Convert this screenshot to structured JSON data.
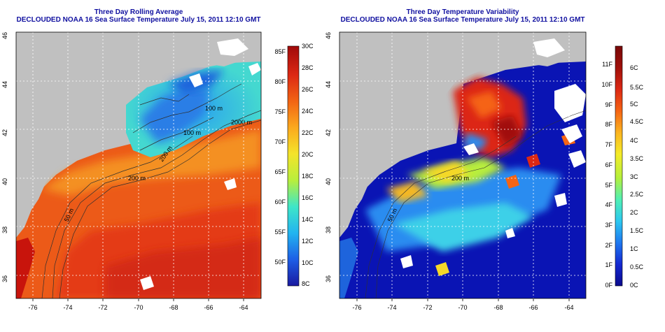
{
  "panels": [
    {
      "title": "Three Day Rolling Average",
      "subtitle": "DECLOUDED NOAA 16 Sea Surface Temperature July 15, 2011 12:10 GMT",
      "lon_ticks": [
        "-76",
        "-74",
        "-72",
        "-70",
        "-68",
        "-66",
        "-64"
      ],
      "lat_ticks": [
        "36",
        "38",
        "40",
        "42",
        "44",
        "46"
      ],
      "contour_labels": [
        "100 m",
        "2000 m",
        "100 m",
        "200 m",
        "200 m",
        "50 m"
      ],
      "colorbar": {
        "celsius": [
          "30C",
          "28C",
          "26C",
          "24C",
          "22C",
          "20C",
          "18C",
          "16C",
          "14C",
          "12C",
          "10C",
          "8C"
        ],
        "fahrenheit": [
          "85F",
          "80F",
          "75F",
          "70F",
          "65F",
          "60F",
          "55F",
          "50F"
        ],
        "colors": [
          "#1a1aa0",
          "#1e5ee6",
          "#22b4f0",
          "#3ee6c8",
          "#b8ee3c",
          "#f4e42a",
          "#fba91e",
          "#f26414",
          "#dc2814",
          "#a00a0a"
        ]
      }
    },
    {
      "title": "Three Day Temperature Variability",
      "subtitle": "DECLOUDED NOAA 16 Sea Surface Temperature July 15, 2011 12:10 GMT",
      "lon_ticks": [
        "-76",
        "-74",
        "-72",
        "-70",
        "-68",
        "-66",
        "-64"
      ],
      "lat_ticks": [
        "36",
        "38",
        "40",
        "42",
        "44",
        "46"
      ],
      "contour_labels": [
        "200 m",
        "50 m"
      ],
      "colorbar": {
        "celsius": [
          "6C",
          "5.5C",
          "5C",
          "4.5C",
          "4C",
          "3.5C",
          "3C",
          "2.5C",
          "2C",
          "1.5C",
          "1C",
          "0.5C",
          "0C"
        ],
        "fahrenheit": [
          "11F",
          "10F",
          "9F",
          "8F",
          "7F",
          "6F",
          "5F",
          "4F",
          "3F",
          "2F",
          "1F",
          "0F"
        ],
        "colors": [
          "#0a0a8c",
          "#1428d2",
          "#1e78f0",
          "#2cc8f0",
          "#50f0b4",
          "#b4f03c",
          "#f5eb28",
          "#fbb420",
          "#f56414",
          "#dc2814",
          "#a0100a",
          "#780808"
        ]
      }
    }
  ]
}
